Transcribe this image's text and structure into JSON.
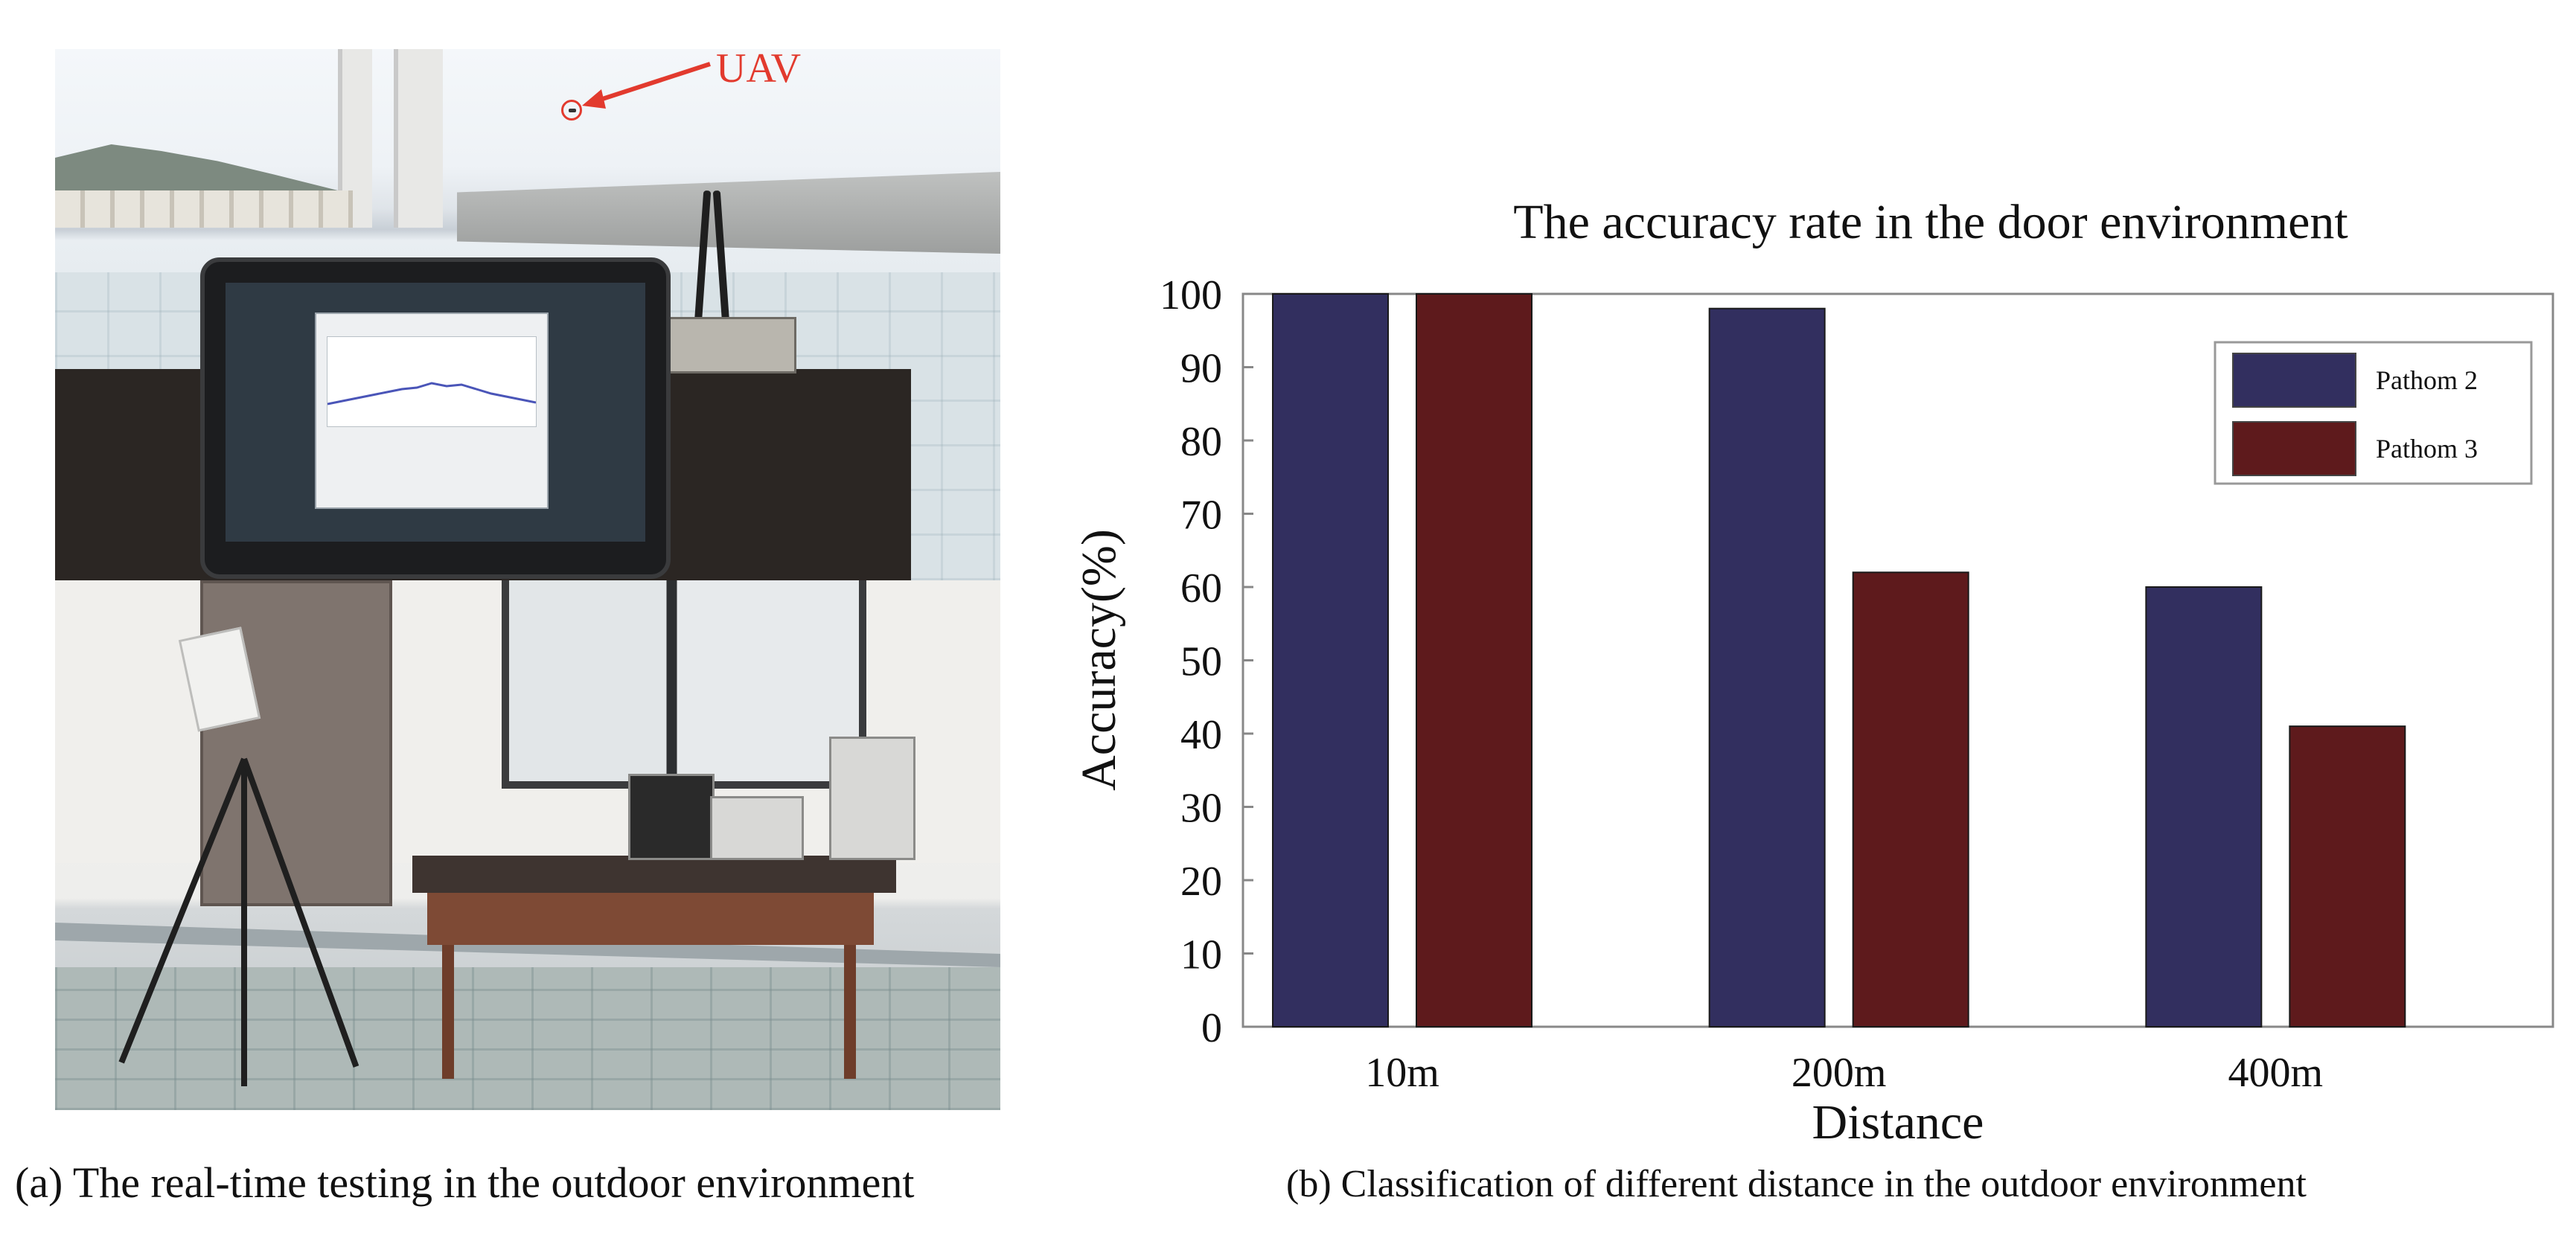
{
  "photo_panel": {
    "uav_label": "UAV",
    "caption": "(a) The real-time testing in the outdoor environment"
  },
  "chart_panel": {
    "caption": "(b) Classification of different distance in the outdoor environment"
  },
  "chart_data": {
    "type": "bar",
    "title": "The accuracy rate in the door environment",
    "xlabel": "Distance",
    "ylabel": "Accuracy(%)",
    "categories": [
      "10m",
      "200m",
      "400m"
    ],
    "series": [
      {
        "name": "Pathom 2",
        "values": [
          100,
          98,
          60
        ],
        "color": "#322f5f"
      },
      {
        "name": "Pathom 3",
        "values": [
          100,
          62,
          41
        ],
        "color": "#5e1a1c"
      }
    ],
    "ylim": [
      0,
      100
    ],
    "yticks": [
      0,
      10,
      20,
      30,
      40,
      50,
      60,
      70,
      80,
      90,
      100
    ],
    "legend_position": "top-right",
    "grid": false
  }
}
